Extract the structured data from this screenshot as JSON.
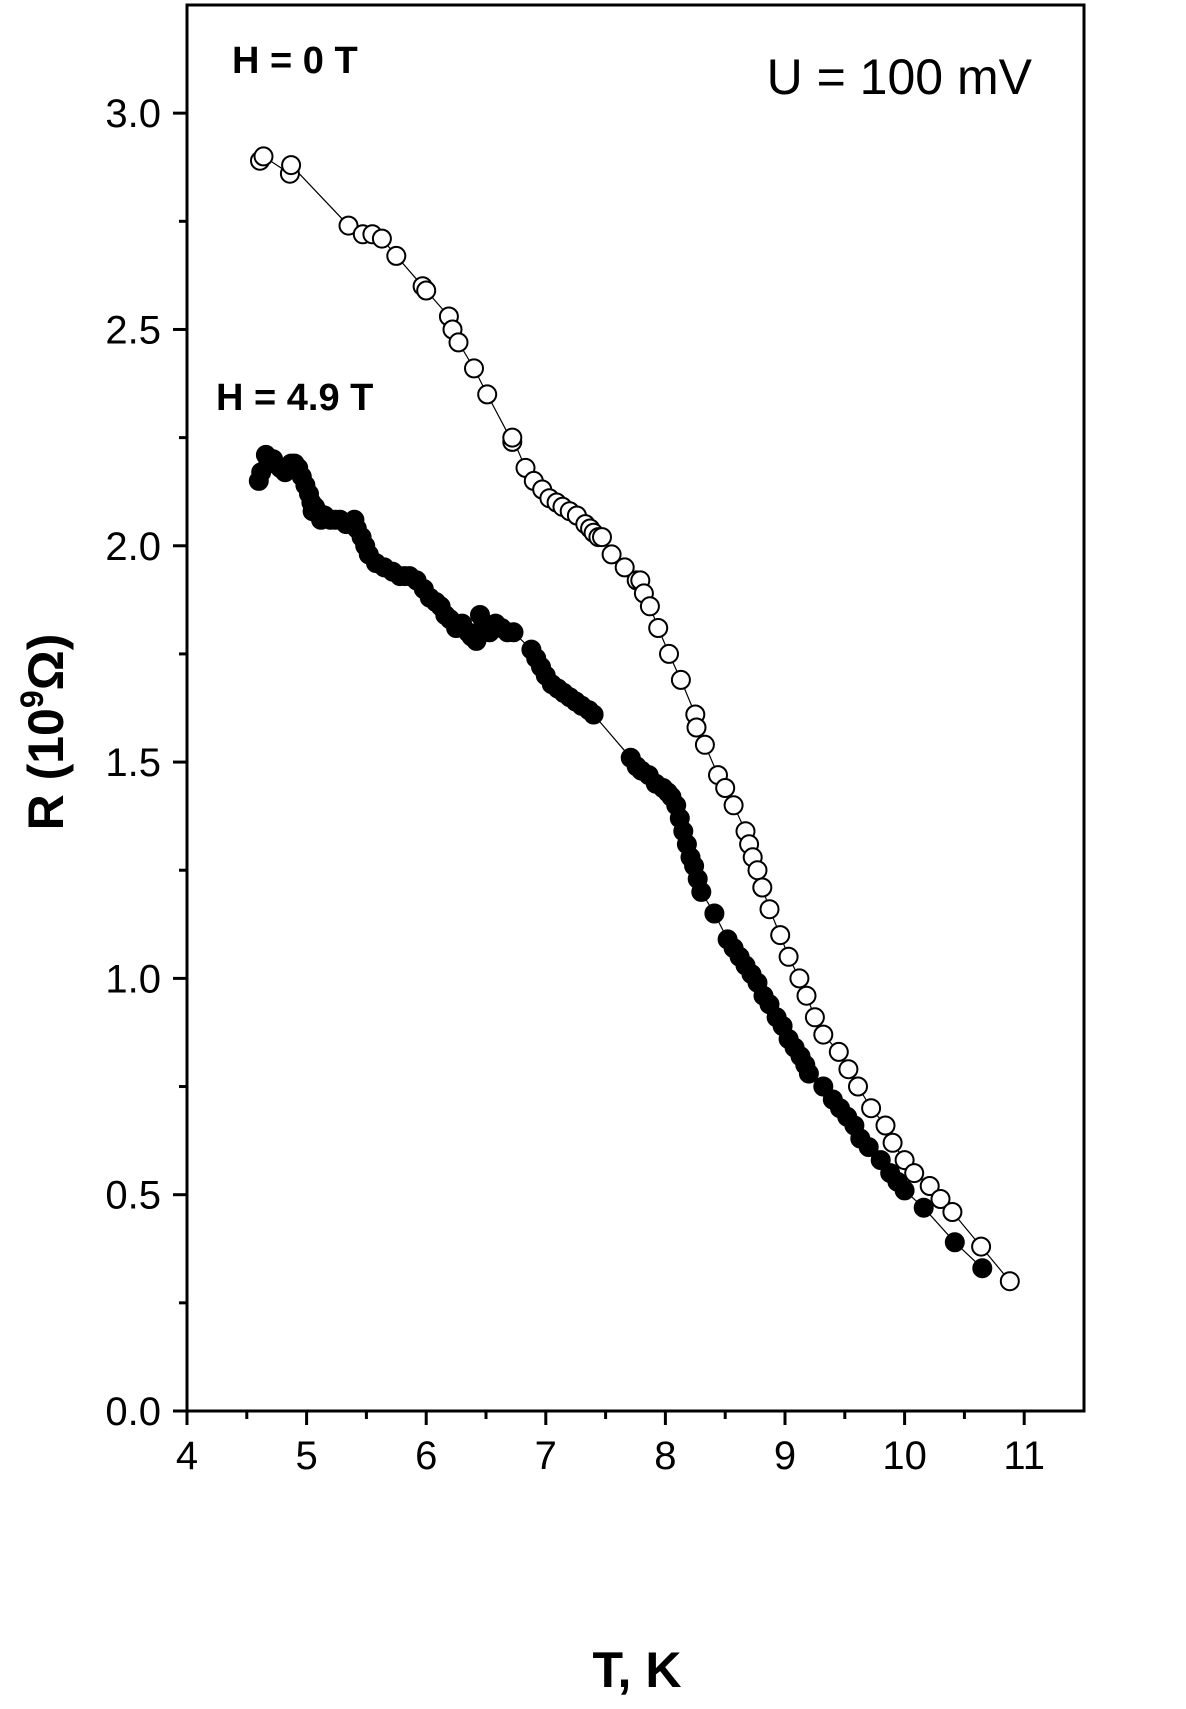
{
  "chart_data": {
    "type": "scatter",
    "xlabel": "T, K",
    "ylabel_main": "R (10",
    "ylabel_sup": "9",
    "ylabel_unit": "Ω)",
    "xlim": [
      4,
      11.5
    ],
    "ylim": [
      0,
      3.25
    ],
    "x_ticks": [
      4,
      5,
      6,
      7,
      8,
      9,
      10,
      11
    ],
    "x_minor_ticks": [
      4.5,
      5.5,
      6.5,
      7.5,
      8.5,
      9.5,
      10.5
    ],
    "y_ticks": [
      0.0,
      0.5,
      1.0,
      1.5,
      2.0,
      2.5,
      3.0
    ],
    "y_tick_labels": [
      "0.0",
      "0.5",
      "1.0",
      "1.5",
      "2.0",
      "2.5",
      "3.0"
    ],
    "y_minor_ticks": [
      0.25,
      0.75,
      1.25,
      1.75,
      2.25,
      2.75
    ],
    "annotations": {
      "h0": "H = 0 T",
      "h49": "H = 4.9 T",
      "u": "U = 100 mV"
    },
    "colors": {
      "axis": "#000000",
      "open_fill": "#ffffff",
      "closed_fill": "#000000"
    },
    "series": [
      {
        "marker": "open-circle",
        "points": [
          [
            4.61,
            2.89
          ],
          [
            4.64,
            2.9
          ],
          [
            4.86,
            2.86
          ],
          [
            4.87,
            2.88
          ],
          [
            5.35,
            2.74
          ],
          [
            5.47,
            2.72
          ],
          [
            5.55,
            2.72
          ],
          [
            5.63,
            2.71
          ],
          [
            5.75,
            2.67
          ],
          [
            5.97,
            2.6
          ],
          [
            6.0,
            2.59
          ],
          [
            6.19,
            2.53
          ],
          [
            6.22,
            2.5
          ],
          [
            6.27,
            2.47
          ],
          [
            6.4,
            2.41
          ],
          [
            6.51,
            2.35
          ],
          [
            6.72,
            2.24
          ],
          [
            6.72,
            2.25
          ],
          [
            6.83,
            2.18
          ],
          [
            6.9,
            2.15
          ],
          [
            6.97,
            2.13
          ],
          [
            7.03,
            2.11
          ],
          [
            7.09,
            2.1
          ],
          [
            7.14,
            2.09
          ],
          [
            7.2,
            2.08
          ],
          [
            7.26,
            2.07
          ],
          [
            7.33,
            2.05
          ],
          [
            7.37,
            2.04
          ],
          [
            7.4,
            2.03
          ],
          [
            7.44,
            2.02
          ],
          [
            7.47,
            2.02
          ],
          [
            7.55,
            1.98
          ],
          [
            7.66,
            1.95
          ],
          [
            7.76,
            1.92
          ],
          [
            7.79,
            1.92
          ],
          [
            7.82,
            1.89
          ],
          [
            7.87,
            1.86
          ],
          [
            7.94,
            1.81
          ],
          [
            8.03,
            1.75
          ],
          [
            8.13,
            1.69
          ],
          [
            8.25,
            1.61
          ],
          [
            8.26,
            1.58
          ],
          [
            8.33,
            1.54
          ],
          [
            8.44,
            1.47
          ],
          [
            8.5,
            1.44
          ],
          [
            8.57,
            1.4
          ],
          [
            8.67,
            1.34
          ],
          [
            8.7,
            1.31
          ],
          [
            8.73,
            1.28
          ],
          [
            8.77,
            1.25
          ],
          [
            8.81,
            1.21
          ],
          [
            8.87,
            1.16
          ],
          [
            8.96,
            1.1
          ],
          [
            9.03,
            1.05
          ],
          [
            9.12,
            1.0
          ],
          [
            9.18,
            0.96
          ],
          [
            9.25,
            0.91
          ],
          [
            9.32,
            0.87
          ],
          [
            9.45,
            0.83
          ],
          [
            9.53,
            0.79
          ],
          [
            9.61,
            0.75
          ],
          [
            9.72,
            0.7
          ],
          [
            9.84,
            0.66
          ],
          [
            9.9,
            0.62
          ],
          [
            10.0,
            0.58
          ],
          [
            10.08,
            0.55
          ],
          [
            10.21,
            0.52
          ],
          [
            10.3,
            0.49
          ],
          [
            10.4,
            0.46
          ],
          [
            10.64,
            0.38
          ],
          [
            10.88,
            0.3
          ]
        ]
      },
      {
        "marker": "filled-circle",
        "points": [
          [
            4.6,
            2.15
          ],
          [
            4.62,
            2.17
          ],
          [
            4.66,
            2.21
          ],
          [
            4.68,
            2.19
          ],
          [
            4.72,
            2.2
          ],
          [
            4.78,
            2.18
          ],
          [
            4.82,
            2.17
          ],
          [
            4.87,
            2.19
          ],
          [
            4.9,
            2.19
          ],
          [
            4.93,
            2.18
          ],
          [
            4.96,
            2.16
          ],
          [
            4.99,
            2.14
          ],
          [
            5.02,
            2.12
          ],
          [
            5.04,
            2.1
          ],
          [
            5.05,
            2.08
          ],
          [
            5.07,
            2.09
          ],
          [
            5.09,
            2.08
          ],
          [
            5.12,
            2.06
          ],
          [
            5.15,
            2.07
          ],
          [
            5.2,
            2.06
          ],
          [
            5.24,
            2.06
          ],
          [
            5.28,
            2.06
          ],
          [
            5.33,
            2.05
          ],
          [
            5.38,
            2.05
          ],
          [
            5.4,
            2.06
          ],
          [
            5.42,
            2.04
          ],
          [
            5.46,
            2.02
          ],
          [
            5.49,
            2.0
          ],
          [
            5.52,
            1.98
          ],
          [
            5.58,
            1.96
          ],
          [
            5.65,
            1.95
          ],
          [
            5.72,
            1.94
          ],
          [
            5.78,
            1.93
          ],
          [
            5.82,
            1.93
          ],
          [
            5.86,
            1.93
          ],
          [
            5.92,
            1.92
          ],
          [
            5.98,
            1.9
          ],
          [
            6.03,
            1.88
          ],
          [
            6.08,
            1.87
          ],
          [
            6.12,
            1.86
          ],
          [
            6.16,
            1.84
          ],
          [
            6.2,
            1.83
          ],
          [
            6.25,
            1.81
          ],
          [
            6.3,
            1.82
          ],
          [
            6.35,
            1.8
          ],
          [
            6.38,
            1.79
          ],
          [
            6.42,
            1.78
          ],
          [
            6.45,
            1.84
          ],
          [
            6.48,
            1.82
          ],
          [
            6.53,
            1.8
          ],
          [
            6.58,
            1.82
          ],
          [
            6.63,
            1.81
          ],
          [
            6.68,
            1.8
          ],
          [
            6.73,
            1.8
          ],
          [
            6.88,
            1.76
          ],
          [
            6.92,
            1.74
          ],
          [
            6.96,
            1.72
          ],
          [
            7.0,
            1.7
          ],
          [
            7.05,
            1.68
          ],
          [
            7.1,
            1.67
          ],
          [
            7.15,
            1.66
          ],
          [
            7.2,
            1.65
          ],
          [
            7.25,
            1.64
          ],
          [
            7.3,
            1.63
          ],
          [
            7.36,
            1.62
          ],
          [
            7.4,
            1.61
          ],
          [
            7.71,
            1.51
          ],
          [
            7.76,
            1.49
          ],
          [
            7.8,
            1.48
          ],
          [
            7.86,
            1.47
          ],
          [
            7.92,
            1.45
          ],
          [
            7.98,
            1.44
          ],
          [
            8.02,
            1.43
          ],
          [
            8.05,
            1.42
          ],
          [
            8.09,
            1.4
          ],
          [
            8.12,
            1.37
          ],
          [
            8.15,
            1.34
          ],
          [
            8.18,
            1.31
          ],
          [
            8.21,
            1.28
          ],
          [
            8.24,
            1.26
          ],
          [
            8.27,
            1.23
          ],
          [
            8.3,
            1.2
          ],
          [
            8.41,
            1.15
          ],
          [
            8.52,
            1.09
          ],
          [
            8.57,
            1.07
          ],
          [
            8.62,
            1.05
          ],
          [
            8.67,
            1.03
          ],
          [
            8.72,
            1.01
          ],
          [
            8.77,
            0.99
          ],
          [
            8.82,
            0.96
          ],
          [
            8.87,
            0.94
          ],
          [
            8.93,
            0.91
          ],
          [
            8.98,
            0.89
          ],
          [
            9.03,
            0.86
          ],
          [
            9.08,
            0.84
          ],
          [
            9.13,
            0.82
          ],
          [
            9.17,
            0.8
          ],
          [
            9.2,
            0.78
          ],
          [
            9.32,
            0.75
          ],
          [
            9.4,
            0.72
          ],
          [
            9.46,
            0.7
          ],
          [
            9.52,
            0.68
          ],
          [
            9.58,
            0.66
          ],
          [
            9.63,
            0.63
          ],
          [
            9.7,
            0.61
          ],
          [
            9.8,
            0.58
          ],
          [
            9.88,
            0.55
          ],
          [
            9.94,
            0.53
          ],
          [
            10.0,
            0.51
          ],
          [
            10.16,
            0.47
          ],
          [
            10.42,
            0.39
          ],
          [
            10.65,
            0.33
          ]
        ]
      }
    ]
  }
}
